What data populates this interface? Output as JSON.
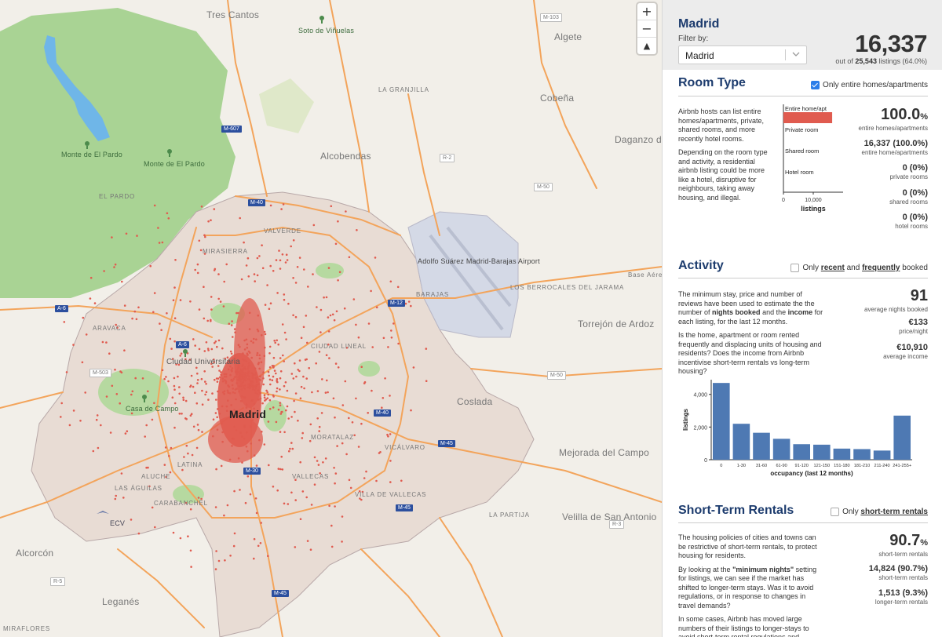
{
  "map": {
    "zoom": {
      "in": "+",
      "out": "−",
      "reset": "▲"
    },
    "labels": [
      {
        "text": "Tres Cantos",
        "cls": "town",
        "x": 263,
        "y": 12
      },
      {
        "text": "Soto de Viñuelas",
        "cls": "park",
        "x": 380,
        "y": 34
      },
      {
        "text": "Algete",
        "cls": "town",
        "x": 706,
        "y": 40
      },
      {
        "text": "LA GRANJILLA",
        "cls": "dist",
        "x": 482,
        "y": 110
      },
      {
        "text": "Cobeña",
        "cls": "town",
        "x": 688,
        "y": 118
      },
      {
        "text": "Monte de El Pardo",
        "cls": "park",
        "x": 78,
        "y": 192
      },
      {
        "text": "Monte de El Pardo",
        "cls": "park",
        "x": 183,
        "y": 204
      },
      {
        "text": "Alcobendas",
        "cls": "town",
        "x": 408,
        "y": 192
      },
      {
        "text": "Daganzo de Arriba",
        "cls": "town",
        "x": 783,
        "y": 171
      },
      {
        "text": "EL PARDO",
        "cls": "dist",
        "x": 126,
        "y": 246
      },
      {
        "text": "VALVERDE",
        "cls": "dist",
        "x": 336,
        "y": 290
      },
      {
        "text": "MIRASIERRA",
        "cls": "dist",
        "x": 258,
        "y": 316
      },
      {
        "text": "BARAJAS",
        "cls": "dist",
        "x": 530,
        "y": 371
      },
      {
        "text": "LOS BERROCALES DEL JARAMA",
        "cls": "dist",
        "x": 650,
        "y": 362
      },
      {
        "text": "Base Aérea de Torrejón",
        "cls": "dist",
        "x": 800,
        "y": 346
      },
      {
        "text": "Torrejón de Ardoz",
        "cls": "town",
        "x": 736,
        "y": 406
      },
      {
        "text": "ARAVACA",
        "cls": "dist",
        "x": 118,
        "y": 414
      },
      {
        "text": "CIUDAD LINEAL",
        "cls": "dist",
        "x": 396,
        "y": 437
      },
      {
        "text": "Ciudad Universitaria",
        "cls": "",
        "x": 212,
        "y": 456
      },
      {
        "text": "Coslada",
        "cls": "town",
        "x": 582,
        "y": 505
      },
      {
        "text": "Casa de Campo",
        "cls": "park",
        "x": 160,
        "y": 516
      },
      {
        "text": "MORATALAZ",
        "cls": "dist",
        "x": 396,
        "y": 553
      },
      {
        "text": "VICÁLVARO",
        "cls": "dist",
        "x": 490,
        "y": 566
      },
      {
        "text": "Mejorada del Campo",
        "cls": "town",
        "x": 712,
        "y": 570
      },
      {
        "text": "LATINA",
        "cls": "dist",
        "x": 226,
        "y": 588
      },
      {
        "text": "ALUCHE",
        "cls": "dist",
        "x": 180,
        "y": 603
      },
      {
        "text": "VALLECAS",
        "cls": "dist",
        "x": 372,
        "y": 603
      },
      {
        "text": "LAS ÁGUILAS",
        "cls": "dist",
        "x": 146,
        "y": 618
      },
      {
        "text": "VILLA DE VALLECAS",
        "cls": "dist",
        "x": 452,
        "y": 626
      },
      {
        "text": "CARABANCHEL",
        "cls": "dist",
        "x": 196,
        "y": 637
      },
      {
        "text": "LA PARTIJA",
        "cls": "dist",
        "x": 623,
        "y": 652
      },
      {
        "text": "Velilla de San Antonio",
        "cls": "town",
        "x": 716,
        "y": 652
      },
      {
        "text": "Alcorcón",
        "cls": "town",
        "x": 20,
        "y": 698
      },
      {
        "text": "Leganés",
        "cls": "town",
        "x": 130,
        "y": 760
      },
      {
        "text": "MIRAFLORES",
        "cls": "dist",
        "x": 4,
        "y": 797
      }
    ],
    "shields": [
      {
        "text": "M-607",
        "x": 282,
        "y": 160,
        "white": false
      },
      {
        "text": "M-40",
        "x": 316,
        "y": 254,
        "white": false
      },
      {
        "text": "M-12",
        "x": 494,
        "y": 382,
        "white": false
      },
      {
        "text": "A-6",
        "x": 70,
        "y": 389,
        "white": false
      },
      {
        "text": "A-6",
        "x": 224,
        "y": 435,
        "white": false
      },
      {
        "text": "M-40",
        "x": 476,
        "y": 522,
        "white": false
      },
      {
        "text": "M-45",
        "x": 558,
        "y": 561,
        "white": false
      },
      {
        "text": "M-30",
        "x": 310,
        "y": 596,
        "white": false
      },
      {
        "text": "M-45",
        "x": 504,
        "y": 643,
        "white": false
      },
      {
        "text": "M-45",
        "x": 346,
        "y": 752,
        "white": false
      },
      {
        "text": "M-103",
        "x": 688,
        "y": 17,
        "white": true
      },
      {
        "text": "M-50",
        "x": 680,
        "y": 233,
        "white": true
      },
      {
        "text": "M-50",
        "x": 697,
        "y": 473,
        "white": true
      },
      {
        "text": "M-503",
        "x": 114,
        "y": 470,
        "white": true
      },
      {
        "text": "R-2",
        "x": 560,
        "y": 196,
        "white": true
      },
      {
        "text": "R-3",
        "x": 776,
        "y": 663,
        "white": true
      },
      {
        "text": "R-5",
        "x": 64,
        "y": 736,
        "white": true
      }
    ],
    "airport_label": "Adolfo Suárez Madrid-Barajas Airport",
    "city_center_label": "Madrid",
    "ecv_label": "ECV"
  },
  "panel": {
    "city": "Madrid",
    "filter_label": "Filter by:",
    "filter_value": "Madrid",
    "total": "16,337",
    "out_of_prefix": "out of",
    "out_of_count": "25,543",
    "out_of_suffix": "listings (64.0%)",
    "room_type": {
      "title": "Room Type",
      "checkbox": "Only entire homes/apartments",
      "checked": true,
      "desc1": "Airbnb hosts can list entire homes/apartments, private, shared rooms, and more recently hotel rooms.",
      "desc2": "Depending on the room type and activity, a residential airbnb listing could be more like a hotel, disruptive for neighbours, taking away housing, and illegal.",
      "chart_data": {
        "type": "bar",
        "orientation": "horizontal",
        "categories": [
          "Entire home/apt",
          "Private room",
          "Shared room",
          "Hotel room"
        ],
        "values": [
          16337,
          0,
          0,
          0
        ],
        "xlabel": "listings",
        "xticks": [
          "0",
          "10,000"
        ],
        "xlim": [
          0,
          20000
        ],
        "color": "#e05b4f"
      },
      "stats": [
        {
          "value": "100.0",
          "unit": "%",
          "label": "entire homes/apartments"
        },
        {
          "value": "16,337 (100.0%)",
          "label": "entire home/apartments"
        },
        {
          "value": "0 (0%)",
          "label": "private rooms"
        },
        {
          "value": "0 (0%)",
          "label": "shared rooms"
        },
        {
          "value": "0 (0%)",
          "label": "hotel rooms"
        }
      ]
    },
    "activity": {
      "title": "Activity",
      "checkbox_prefix": "Only",
      "checkbox_recent": "recent",
      "checkbox_and": "and",
      "checkbox_frequently": "frequently",
      "checkbox_suffix": "booked",
      "checked": false,
      "desc1_a": "The minimum stay, price and number of reviews have been used to estimate the the number of",
      "desc1_b": "nights booked",
      "desc1_c": "and the",
      "desc1_d": "income",
      "desc1_e": "for each listing, for the last 12 months.",
      "desc2": "Is the home, apartment or room rented frequently and displacing units of housing and residents? Does the income from Airbnb incentivise short-term rentals vs long-term housing?",
      "stats": [
        {
          "value": "91",
          "label": "average nights booked"
        },
        {
          "value": "€133",
          "label": "price/night"
        },
        {
          "value": "€10,910",
          "label": "average income"
        }
      ],
      "chart_data": {
        "type": "bar",
        "categories": [
          "0",
          "1-30",
          "31-60",
          "61-90",
          "91-120",
          "121-150",
          "151-180",
          "181-210",
          "211-240",
          "241-255+"
        ],
        "values": [
          4700,
          2200,
          1650,
          1280,
          950,
          920,
          680,
          650,
          560,
          2700
        ],
        "xlabel": "occupancy (last 12 months)",
        "ylabel": "listings",
        "yticks": [
          "0",
          "2,000",
          "4,000"
        ],
        "ylim": [
          0,
          4900
        ],
        "color": "#4e79b3"
      }
    },
    "str": {
      "title": "Short-Term Rentals",
      "checkbox_prefix": "Only",
      "checkbox_link": "short-term rentals",
      "checked": false,
      "desc1": "The housing policies of cities and towns can be restrictive of short-term rentals, to protect housing for residents.",
      "desc2_a": "By looking at the",
      "desc2_b": "\"minimum nights\"",
      "desc2_c": "setting for listings, we can see if the market has shifted to longer-term stays. Was it to avoid regulations, or in response to changes in travel demands?",
      "desc3": "In some cases, Airbnb has moved large numbers of their listings to longer-stays to avoid short-term rental regulations and accountability.",
      "stats": [
        {
          "value": "90.7",
          "unit": "%",
          "label": "short-term rentals"
        },
        {
          "value": "14,824 (90.7%)",
          "label": "short-term rentals"
        },
        {
          "value": "1,513 (9.3%)",
          "label": "longer-term rentals"
        }
      ]
    }
  }
}
